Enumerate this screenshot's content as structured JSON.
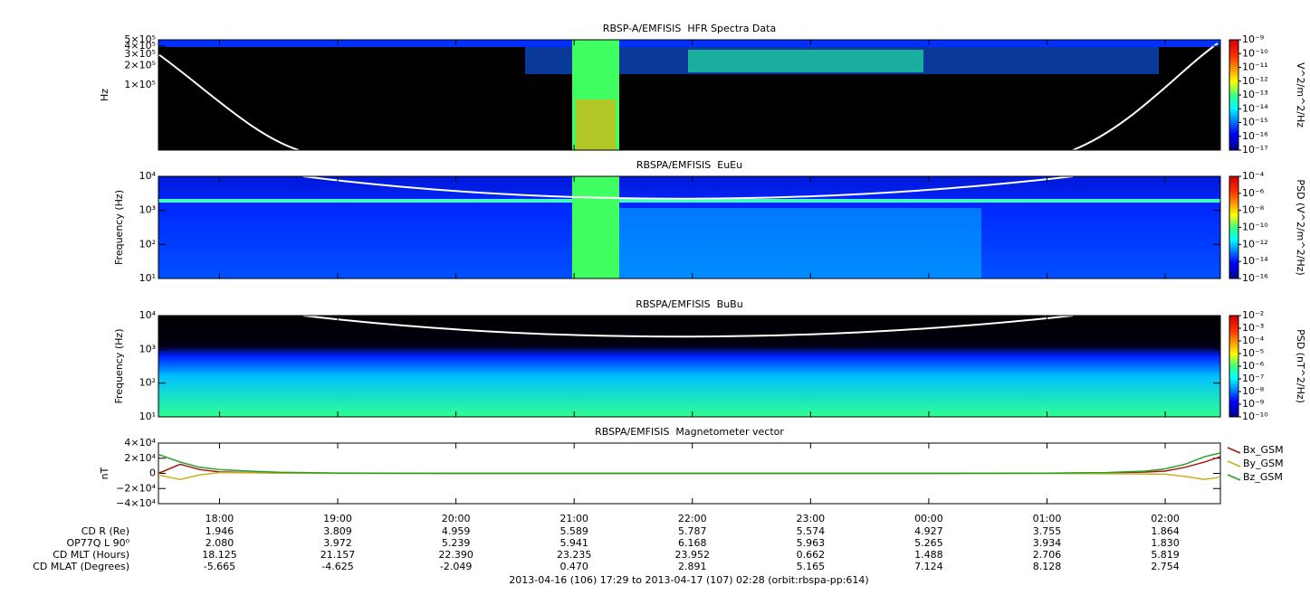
{
  "chart_data": [
    {
      "type": "spectrogram",
      "title": "RBSP-A/EMFISIS  HFR Spectra Data",
      "ylabel": "Hz",
      "ylog": true,
      "ylim": [
        10000,
        500000
      ],
      "yticks": [
        {
          "value": 500000,
          "label": "5×10⁵"
        },
        {
          "value": 400000,
          "label": "4×10⁵"
        },
        {
          "value": 300000,
          "label": "3×10⁵"
        },
        {
          "value": 200000,
          "label": "2×10⁵"
        },
        {
          "value": 100000,
          "label": "1×10⁵"
        }
      ],
      "zlabel": "V^2/m^2/Hz",
      "zlim": [
        1e-17,
        1e-09
      ],
      "zticks": [
        {
          "value": 1e-09,
          "label": "10⁻⁹"
        },
        {
          "value": 1e-10,
          "label": "10⁻¹⁰"
        },
        {
          "value": 1e-11,
          "label": "10⁻¹¹"
        },
        {
          "value": 1e-12,
          "label": "10⁻¹²"
        },
        {
          "value": 1e-13,
          "label": "10⁻¹³"
        },
        {
          "value": 1e-14,
          "label": "10⁻¹⁴"
        },
        {
          "value": 1e-15,
          "label": "10⁻¹⁵"
        },
        {
          "value": 1e-16,
          "label": "10⁻¹⁶"
        },
        {
          "value": 1e-17,
          "label": "10⁻¹⁷"
        }
      ]
    },
    {
      "type": "spectrogram",
      "title": "RBSPA/EMFISIS  EuEu",
      "ylabel": "Frequency (Hz)",
      "ylog": true,
      "ylim": [
        10,
        10000
      ],
      "yticks": [
        {
          "value": 10000,
          "label": "10⁴"
        },
        {
          "value": 1000,
          "label": "10³"
        },
        {
          "value": 100,
          "label": "10²"
        },
        {
          "value": 10,
          "label": "10¹"
        }
      ],
      "zlabel": "PSD (V^2/m^2/Hz)",
      "zlim": [
        1e-16,
        0.0001
      ],
      "zticks": [
        {
          "value": 0.0001,
          "label": "10⁻⁴"
        },
        {
          "value": 1e-06,
          "label": "10⁻⁶"
        },
        {
          "value": 1e-08,
          "label": "10⁻⁸"
        },
        {
          "value": 1e-10,
          "label": "10⁻¹⁰"
        },
        {
          "value": 1e-12,
          "label": "10⁻¹²"
        },
        {
          "value": 1e-14,
          "label": "10⁻¹⁴"
        },
        {
          "value": 1e-16,
          "label": "10⁻¹⁶"
        }
      ]
    },
    {
      "type": "spectrogram",
      "title": "RBSPA/EMFISIS  BuBu",
      "ylabel": "Frequency (Hz)",
      "ylog": true,
      "ylim": [
        10,
        10000
      ],
      "yticks": [
        {
          "value": 10000,
          "label": "10⁴"
        },
        {
          "value": 1000,
          "label": "10³"
        },
        {
          "value": 100,
          "label": "10²"
        },
        {
          "value": 10,
          "label": "10¹"
        }
      ],
      "zlabel": "PSD (nT^2/Hz)",
      "zlim": [
        1e-10,
        0.01
      ],
      "zticks": [
        {
          "value": 0.01,
          "label": "10⁻²"
        },
        {
          "value": 0.001,
          "label": "10⁻³"
        },
        {
          "value": 0.0001,
          "label": "10⁻⁴"
        },
        {
          "value": 1e-05,
          "label": "10⁻⁵"
        },
        {
          "value": 1e-06,
          "label": "10⁻⁶"
        },
        {
          "value": 1e-07,
          "label": "10⁻⁷"
        },
        {
          "value": 1e-08,
          "label": "10⁻⁸"
        },
        {
          "value": 1e-09,
          "label": "10⁻⁹"
        },
        {
          "value": 1e-10,
          "label": "10⁻¹⁰"
        }
      ]
    },
    {
      "type": "line",
      "title": "RBSPA/EMFISIS  Magnetometer vector",
      "ylabel": "nT",
      "ylim": [
        -40000,
        40000
      ],
      "yticks": [
        {
          "value": 40000,
          "label": "4×10⁴"
        },
        {
          "value": 20000,
          "label": "2×10⁴"
        },
        0,
        {
          "value": -20000,
          "label": "−2×10⁴"
        },
        {
          "value": -40000,
          "label": "−4×10⁴"
        }
      ],
      "xlim": [
        "17:29",
        "02:28"
      ],
      "xticks": [
        "18:00",
        "19:00",
        "20:00",
        "21:00",
        "22:00",
        "23:00",
        "00:00",
        "01:00",
        "02:00"
      ],
      "x": [
        "17:29",
        "17:40",
        "17:50",
        "18:00",
        "18:15",
        "18:30",
        "19:00",
        "20:00",
        "22:00",
        "00:00",
        "01:00",
        "01:30",
        "01:50",
        "02:00",
        "02:10",
        "02:20",
        "02:28"
      ],
      "series": [
        {
          "name": "Bx_GSM",
          "color": "#a01818",
          "values": [
            0,
            12000,
            5000,
            2000,
            1000,
            500,
            200,
            0,
            0,
            0,
            200,
            800,
            1800,
            3000,
            8000,
            15000,
            22000
          ]
        },
        {
          "name": "By_GSM",
          "color": "#c8b020",
          "values": [
            -2000,
            -8000,
            -2000,
            1000,
            800,
            500,
            200,
            0,
            0,
            0,
            -200,
            -500,
            -800,
            -1000,
            -4000,
            -8000,
            -5000
          ]
        },
        {
          "name": "Bz_GSM",
          "color": "#28a028",
          "values": [
            25000,
            15000,
            8000,
            5000,
            3000,
            1500,
            500,
            0,
            0,
            0,
            300,
            1000,
            3000,
            6000,
            12000,
            22000,
            27000
          ]
        }
      ]
    }
  ],
  "ephemeris": {
    "rows": [
      {
        "label": "CD R (Re)",
        "values": [
          "1.946",
          "3.809",
          "4.959",
          "5.589",
          "5.787",
          "5.574",
          "4.927",
          "3.755",
          "1.864"
        ]
      },
      {
        "label": "OP77Q L 90⁰",
        "values": [
          "2.080",
          "3.972",
          "5.239",
          "5.941",
          "6.168",
          "5.963",
          "5.265",
          "3.934",
          "1.830"
        ]
      },
      {
        "label": "CD MLT (Hours)",
        "values": [
          "18.125",
          "21.157",
          "22.390",
          "23.235",
          "23.952",
          "0.662",
          "1.488",
          "2.706",
          "5.819"
        ]
      },
      {
        "label": "CD MLAT (Degrees)",
        "values": [
          "-5.665",
          "-4.625",
          "-2.049",
          "0.470",
          "2.891",
          "5.165",
          "7.124",
          "8.128",
          "2.754"
        ]
      }
    ]
  },
  "footer": "2013-04-16 (106) 17:29 to 2013-04-17 (107) 02:28 (orbit:rbspa-pp:614)"
}
